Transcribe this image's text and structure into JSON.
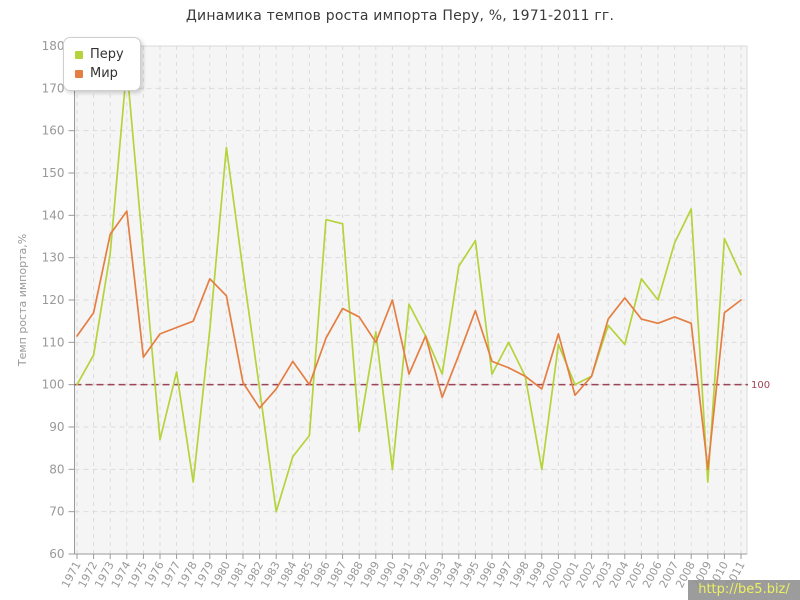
{
  "title": "Динамика темпов роста импорта Перу, %, 1971-2011 гг.",
  "legend": {
    "items": [
      {
        "label": "Перу",
        "color": "#b5d33a"
      },
      {
        "label": "Мир",
        "color": "#e57e42"
      }
    ]
  },
  "watermark": "http://be5.biz/",
  "colors": {
    "peru_line": "#b5d33a",
    "world_line": "#e57e42",
    "reference_line": "#9e4358",
    "grid": "#dcdcdc",
    "plot_background": "#f5f5f5",
    "plot_border": "#d9d9d9",
    "axis": "#9a9a9a",
    "tick_text": "#999999"
  },
  "chart_data": {
    "type": "line",
    "title": "Динамика темпов роста импорта Перу, %, 1971-2011 гг.",
    "xlabel": "",
    "ylabel": "Темп роста импорта,%",
    "ylim": [
      60,
      180
    ],
    "ytick_step": 10,
    "grid": true,
    "legend_position": "top-left",
    "ref_line": {
      "value": 100,
      "label": "100",
      "color": "#9e4358"
    },
    "x": [
      1971,
      1972,
      1973,
      1974,
      1975,
      1976,
      1977,
      1978,
      1979,
      1980,
      1981,
      1982,
      1983,
      1984,
      1985,
      1986,
      1987,
      1988,
      1989,
      1990,
      1991,
      1992,
      1993,
      1994,
      1995,
      1996,
      1997,
      1998,
      1999,
      2000,
      2001,
      2002,
      2003,
      2004,
      2005,
      2006,
      2007,
      2008,
      2009,
      2010,
      2011
    ],
    "series": [
      {
        "name": "Перу",
        "color": "#b5d33a",
        "values": [
          100,
          107,
          131,
          175,
          131,
          87,
          103,
          77,
          113,
          156,
          127,
          99,
          70,
          83,
          88,
          139,
          138,
          89,
          112.5,
          80,
          119,
          111.5,
          102.5,
          128,
          134,
          102.5,
          110,
          102,
          80,
          109.5,
          100,
          102,
          114,
          109.5,
          125,
          120,
          133.5,
          141.5,
          77,
          134.5,
          126
        ]
      },
      {
        "name": "Мир",
        "color": "#e57e42",
        "values": [
          111.5,
          117,
          135.5,
          141,
          106.5,
          112,
          113.5,
          115,
          125,
          121,
          100.5,
          94.5,
          99,
          105.5,
          100,
          111,
          118,
          116,
          110,
          120,
          102.5,
          111.5,
          97,
          107,
          117.5,
          105.5,
          104,
          102,
          99,
          112,
          97.5,
          102,
          115.5,
          120.5,
          115.5,
          114.5,
          116,
          114.5,
          80,
          117,
          120
        ]
      }
    ]
  }
}
